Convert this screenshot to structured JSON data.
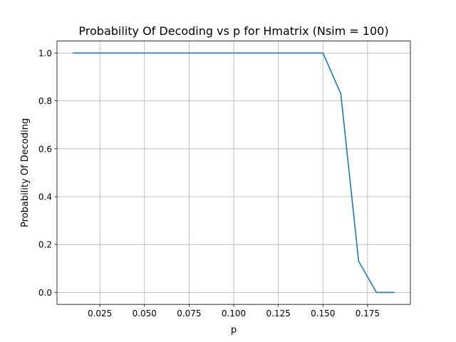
{
  "chart_data": {
    "type": "line",
    "title": "Probability Of Decoding vs p for Hmatrix (Nsim = 100)",
    "xlabel": "p",
    "ylabel": "Probability Of Decoding",
    "xlim": [
      0.001,
      0.199
    ],
    "ylim": [
      -0.05,
      1.05
    ],
    "x_ticks": [
      0.025,
      0.05,
      0.075,
      0.1,
      0.125,
      0.15,
      0.175
    ],
    "x_tick_labels": [
      "0.025",
      "0.050",
      "0.075",
      "0.100",
      "0.125",
      "0.150",
      "0.175"
    ],
    "y_ticks": [
      0.0,
      0.2,
      0.4,
      0.6,
      0.8,
      1.0
    ],
    "y_tick_labels": [
      "0.0",
      "0.2",
      "0.4",
      "0.6",
      "0.8",
      "1.0"
    ],
    "grid": true,
    "series": [
      {
        "color": "#1f77b4",
        "x": [
          0.01,
          0.02,
          0.03,
          0.04,
          0.05,
          0.06,
          0.07,
          0.08,
          0.09,
          0.1,
          0.11,
          0.12,
          0.13,
          0.14,
          0.15,
          0.16,
          0.17,
          0.18,
          0.19
        ],
        "y": [
          1.0,
          1.0,
          1.0,
          1.0,
          1.0,
          1.0,
          1.0,
          1.0,
          1.0,
          1.0,
          1.0,
          1.0,
          1.0,
          1.0,
          1.0,
          0.83,
          0.13,
          0.0,
          0.0
        ]
      }
    ]
  }
}
